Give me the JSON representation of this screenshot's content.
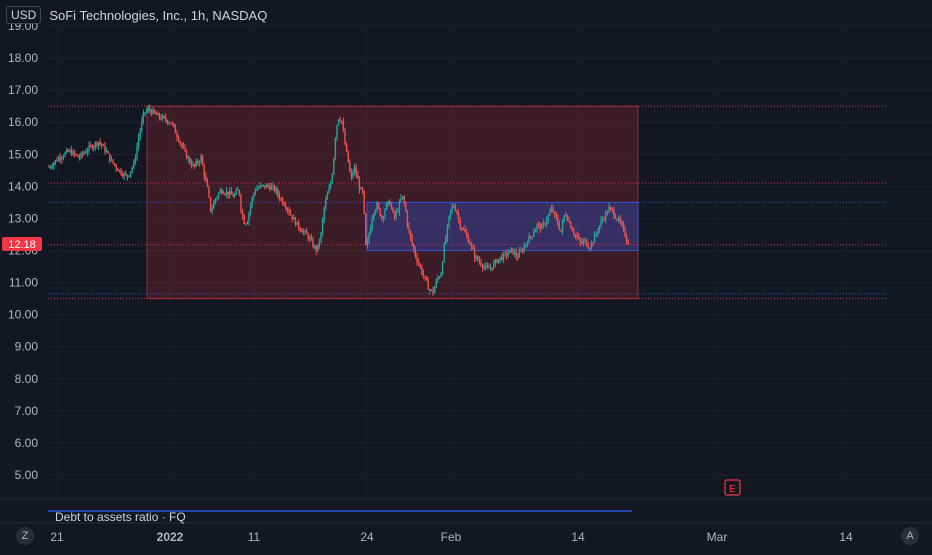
{
  "header": {
    "currency": "USD",
    "title": "SoFi Technologies, Inc., 1h, NASDAQ"
  },
  "indicator": {
    "label": "Debt to assets ratio · FQ"
  },
  "price_badge": {
    "value": "12.18",
    "color": "#f23645"
  },
  "earnings_marker": {
    "label": "E"
  },
  "corner_buttons": {
    "left": "Z",
    "right": "A"
  },
  "colors": {
    "background": "#131722",
    "up": "#26a69a",
    "down": "#ef5350",
    "red_zone": "#f23645",
    "blue_zone": "#2962ff"
  },
  "chart_data": {
    "type": "candlestick",
    "title": "SoFi Technologies, Inc., 1h, NASDAQ",
    "ylim": [
      4.3,
      19.2
    ],
    "y_ticks": [
      "5.00",
      "6.00",
      "7.00",
      "8.00",
      "9.00",
      "10.00",
      "11.00",
      "12.00",
      "13.00",
      "14.00",
      "15.00",
      "16.00",
      "17.00",
      "18.00",
      "19.00"
    ],
    "x_ticks": [
      "21",
      "2022",
      "11",
      "24",
      "Feb",
      "14",
      "Mar",
      "14"
    ],
    "last_price": 12.18,
    "price_path": [
      [
        0,
        14.6
      ],
      [
        10,
        14.9
      ],
      [
        20,
        15.1
      ],
      [
        30,
        14.9
      ],
      [
        40,
        15.2
      ],
      [
        50,
        15.4
      ],
      [
        57,
        15.1
      ],
      [
        62,
        14.8
      ],
      [
        70,
        14.5
      ],
      [
        78,
        14.3
      ],
      [
        85,
        14.7
      ],
      [
        90,
        15.6
      ],
      [
        95,
        16.3
      ],
      [
        100,
        16.4
      ],
      [
        108,
        16.2
      ],
      [
        115,
        16.1
      ],
      [
        122,
        16.0
      ],
      [
        128,
        15.6
      ],
      [
        135,
        15.1
      ],
      [
        140,
        14.8
      ],
      [
        145,
        14.6
      ],
      [
        152,
        14.9
      ],
      [
        155,
        14.4
      ],
      [
        158,
        14.0
      ],
      [
        162,
        13.2
      ],
      [
        166,
        13.6
      ],
      [
        172,
        13.9
      ],
      [
        178,
        13.8
      ],
      [
        185,
        13.7
      ],
      [
        190,
        13.9
      ],
      [
        192,
        13.3
      ],
      [
        195,
        12.9
      ],
      [
        198,
        12.9
      ],
      [
        202,
        13.5
      ],
      [
        206,
        13.9
      ],
      [
        212,
        14.0
      ],
      [
        220,
        14.0
      ],
      [
        226,
        13.9
      ],
      [
        232,
        13.6
      ],
      [
        237,
        13.4
      ],
      [
        242,
        13.1
      ],
      [
        248,
        12.8
      ],
      [
        254,
        12.6
      ],
      [
        260,
        12.4
      ],
      [
        265,
        12.1
      ],
      [
        268,
        12.0
      ],
      [
        272,
        12.5
      ],
      [
        275,
        13.3
      ],
      [
        278,
        13.7
      ],
      [
        281,
        14.0
      ],
      [
        284,
        14.6
      ],
      [
        287,
        15.8
      ],
      [
        290,
        16.2
      ],
      [
        293,
        16.0
      ],
      [
        296,
        15.3
      ],
      [
        299,
        14.8
      ],
      [
        302,
        14.2
      ],
      [
        305,
        14.6
      ],
      [
        308,
        14.3
      ],
      [
        311,
        13.9
      ],
      [
        314,
        13.8
      ],
      [
        317,
        12.0
      ],
      [
        320,
        12.5
      ],
      [
        324,
        13.2
      ],
      [
        328,
        13.4
      ],
      [
        333,
        13.0
      ],
      [
        337,
        13.4
      ],
      [
        341,
        13.5
      ],
      [
        345,
        13.0
      ],
      [
        349,
        13.3
      ],
      [
        353,
        13.7
      ],
      [
        356,
        13.4
      ],
      [
        359,
        12.7
      ],
      [
        363,
        12.2
      ],
      [
        367,
        11.8
      ],
      [
        372,
        11.4
      ],
      [
        376,
        11.1
      ],
      [
        380,
        10.8
      ],
      [
        384,
        10.7
      ],
      [
        388,
        11.1
      ],
      [
        392,
        11.3
      ],
      [
        395,
        12.1
      ],
      [
        398,
        12.6
      ],
      [
        401,
        13.2
      ],
      [
        404,
        13.4
      ],
      [
        407,
        13.3
      ],
      [
        411,
        12.8
      ],
      [
        415,
        12.6
      ],
      [
        420,
        12.3
      ],
      [
        426,
        11.8
      ],
      [
        432,
        11.6
      ],
      [
        438,
        11.4
      ],
      [
        443,
        11.5
      ],
      [
        448,
        11.7
      ],
      [
        453,
        11.8
      ],
      [
        458,
        11.9
      ],
      [
        463,
        12.0
      ],
      [
        468,
        11.8
      ],
      [
        473,
        12.0
      ],
      [
        478,
        12.3
      ],
      [
        483,
        12.5
      ],
      [
        488,
        12.8
      ],
      [
        493,
        12.7
      ],
      [
        498,
        13.0
      ],
      [
        503,
        13.3
      ],
      [
        508,
        12.9
      ],
      [
        512,
        12.6
      ],
      [
        516,
        13.2
      ],
      [
        520,
        12.9
      ],
      [
        524,
        12.6
      ],
      [
        528,
        12.4
      ],
      [
        532,
        12.2
      ],
      [
        536,
        12.3
      ],
      [
        540,
        12.1
      ],
      [
        544,
        12.3
      ],
      [
        548,
        12.6
      ],
      [
        552,
        12.9
      ],
      [
        556,
        13.1
      ],
      [
        560,
        13.3
      ],
      [
        564,
        13.2
      ],
      [
        568,
        13.0
      ],
      [
        572,
        12.8
      ],
      [
        576,
        12.5
      ],
      [
        580,
        12.2
      ]
    ],
    "red_zone": {
      "x_start": "2021-12-31",
      "x_end": "2022-02-22",
      "y_top": 16.5,
      "y_bottom": 10.5
    },
    "blue_zone": {
      "x_start": "2022-01-24",
      "x_end": "2022-02-22",
      "y_top": 13.5,
      "y_bottom": 12.0
    },
    "horizontal_lines": [
      {
        "y": 16.5,
        "color": "red"
      },
      {
        "y": 14.1,
        "color": "red"
      },
      {
        "y": 13.5,
        "color": "blue"
      },
      {
        "y": 12.18,
        "color": "red"
      },
      {
        "y": 10.65,
        "color": "blue"
      },
      {
        "y": 10.5,
        "color": "red"
      }
    ]
  }
}
